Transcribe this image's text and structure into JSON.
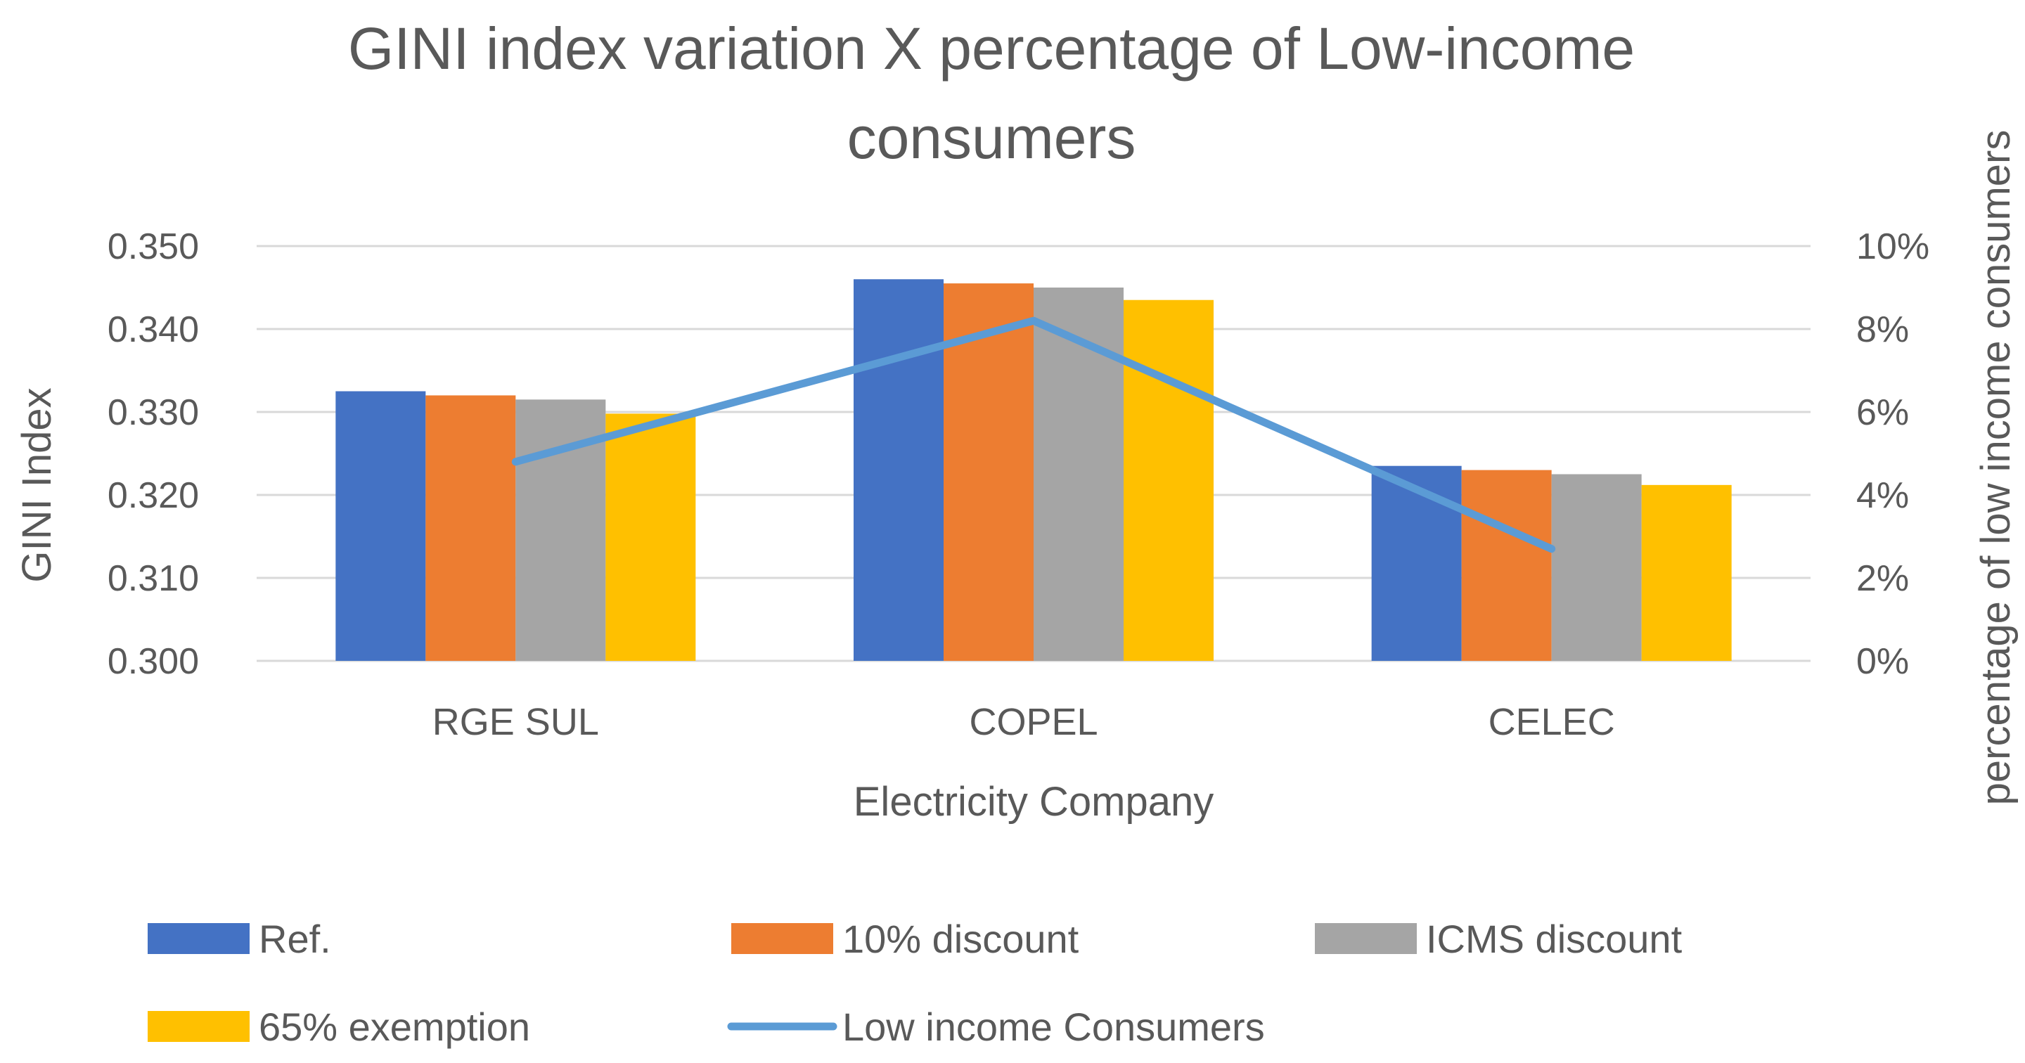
{
  "chart_data": {
    "type": "bar",
    "title_lines": [
      "GINI index variation  X percentage of Low-income",
      "consumers"
    ],
    "xlabel": "Electricity Company",
    "ylabel": "GINI Index",
    "y2label": "percentage of low income consumers",
    "categories": [
      "RGE SUL",
      "COPEL",
      "CELEC"
    ],
    "ylim": [
      0.3,
      0.35
    ],
    "y_ticks": [
      "0.300",
      "0.310",
      "0.320",
      "0.330",
      "0.340",
      "0.350"
    ],
    "y2lim": [
      0,
      10
    ],
    "y2_ticks": [
      "0%",
      "2%",
      "4%",
      "6%",
      "8%",
      "10%"
    ],
    "grid": true,
    "series": [
      {
        "name": "Ref.",
        "kind": "bar",
        "axis": "left",
        "color": "#4472C4",
        "values": [
          0.3325,
          0.346,
          0.3235
        ]
      },
      {
        "name": "10%  discount",
        "kind": "bar",
        "axis": "left",
        "color": "#ED7D31",
        "values": [
          0.332,
          0.3455,
          0.323
        ]
      },
      {
        "name": "ICMS discount",
        "kind": "bar",
        "axis": "left",
        "color": "#A5A5A5",
        "values": [
          0.3315,
          0.345,
          0.3225
        ]
      },
      {
        "name": " 65% exemption",
        "kind": "bar",
        "axis": "left",
        "color": "#FFC000",
        "values": [
          0.3298,
          0.3435,
          0.3212
        ]
      },
      {
        "name": "Low  income Consumers",
        "kind": "line",
        "axis": "right",
        "color": "#5B9BD5",
        "values": [
          4.8,
          8.2,
          2.7
        ]
      }
    ],
    "legend_position": "bottom"
  }
}
